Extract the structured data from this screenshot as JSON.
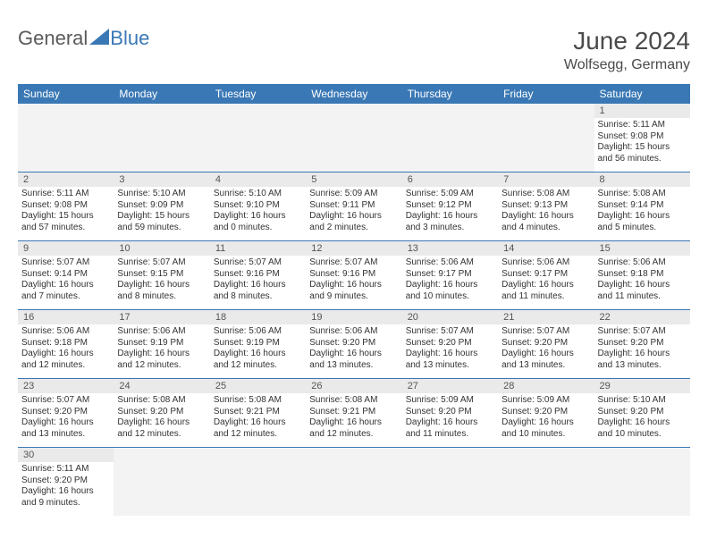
{
  "logo": {
    "part1": "General",
    "part2": "Blue"
  },
  "title": "June 2024",
  "location": "Wolfsegg, Germany",
  "colors": {
    "header_bg": "#3a78b5",
    "header_text": "#ffffff",
    "daynum_bg": "#eaeaea",
    "blank_bg": "#f3f3f3",
    "border": "#3a78b5",
    "text": "#333333",
    "title_text": "#4a4a4a"
  },
  "dow": [
    "Sunday",
    "Monday",
    "Tuesday",
    "Wednesday",
    "Thursday",
    "Friday",
    "Saturday"
  ],
  "days": {
    "1": {
      "sunrise": "Sunrise: 5:11 AM",
      "sunset": "Sunset: 9:08 PM",
      "day1": "Daylight: 15 hours",
      "day2": "and 56 minutes."
    },
    "2": {
      "sunrise": "Sunrise: 5:11 AM",
      "sunset": "Sunset: 9:08 PM",
      "day1": "Daylight: 15 hours",
      "day2": "and 57 minutes."
    },
    "3": {
      "sunrise": "Sunrise: 5:10 AM",
      "sunset": "Sunset: 9:09 PM",
      "day1": "Daylight: 15 hours",
      "day2": "and 59 minutes."
    },
    "4": {
      "sunrise": "Sunrise: 5:10 AM",
      "sunset": "Sunset: 9:10 PM",
      "day1": "Daylight: 16 hours",
      "day2": "and 0 minutes."
    },
    "5": {
      "sunrise": "Sunrise: 5:09 AM",
      "sunset": "Sunset: 9:11 PM",
      "day1": "Daylight: 16 hours",
      "day2": "and 2 minutes."
    },
    "6": {
      "sunrise": "Sunrise: 5:09 AM",
      "sunset": "Sunset: 9:12 PM",
      "day1": "Daylight: 16 hours",
      "day2": "and 3 minutes."
    },
    "7": {
      "sunrise": "Sunrise: 5:08 AM",
      "sunset": "Sunset: 9:13 PM",
      "day1": "Daylight: 16 hours",
      "day2": "and 4 minutes."
    },
    "8": {
      "sunrise": "Sunrise: 5:08 AM",
      "sunset": "Sunset: 9:14 PM",
      "day1": "Daylight: 16 hours",
      "day2": "and 5 minutes."
    },
    "9": {
      "sunrise": "Sunrise: 5:07 AM",
      "sunset": "Sunset: 9:14 PM",
      "day1": "Daylight: 16 hours",
      "day2": "and 7 minutes."
    },
    "10": {
      "sunrise": "Sunrise: 5:07 AM",
      "sunset": "Sunset: 9:15 PM",
      "day1": "Daylight: 16 hours",
      "day2": "and 8 minutes."
    },
    "11": {
      "sunrise": "Sunrise: 5:07 AM",
      "sunset": "Sunset: 9:16 PM",
      "day1": "Daylight: 16 hours",
      "day2": "and 8 minutes."
    },
    "12": {
      "sunrise": "Sunrise: 5:07 AM",
      "sunset": "Sunset: 9:16 PM",
      "day1": "Daylight: 16 hours",
      "day2": "and 9 minutes."
    },
    "13": {
      "sunrise": "Sunrise: 5:06 AM",
      "sunset": "Sunset: 9:17 PM",
      "day1": "Daylight: 16 hours",
      "day2": "and 10 minutes."
    },
    "14": {
      "sunrise": "Sunrise: 5:06 AM",
      "sunset": "Sunset: 9:17 PM",
      "day1": "Daylight: 16 hours",
      "day2": "and 11 minutes."
    },
    "15": {
      "sunrise": "Sunrise: 5:06 AM",
      "sunset": "Sunset: 9:18 PM",
      "day1": "Daylight: 16 hours",
      "day2": "and 11 minutes."
    },
    "16": {
      "sunrise": "Sunrise: 5:06 AM",
      "sunset": "Sunset: 9:18 PM",
      "day1": "Daylight: 16 hours",
      "day2": "and 12 minutes."
    },
    "17": {
      "sunrise": "Sunrise: 5:06 AM",
      "sunset": "Sunset: 9:19 PM",
      "day1": "Daylight: 16 hours",
      "day2": "and 12 minutes."
    },
    "18": {
      "sunrise": "Sunrise: 5:06 AM",
      "sunset": "Sunset: 9:19 PM",
      "day1": "Daylight: 16 hours",
      "day2": "and 12 minutes."
    },
    "19": {
      "sunrise": "Sunrise: 5:06 AM",
      "sunset": "Sunset: 9:20 PM",
      "day1": "Daylight: 16 hours",
      "day2": "and 13 minutes."
    },
    "20": {
      "sunrise": "Sunrise: 5:07 AM",
      "sunset": "Sunset: 9:20 PM",
      "day1": "Daylight: 16 hours",
      "day2": "and 13 minutes."
    },
    "21": {
      "sunrise": "Sunrise: 5:07 AM",
      "sunset": "Sunset: 9:20 PM",
      "day1": "Daylight: 16 hours",
      "day2": "and 13 minutes."
    },
    "22": {
      "sunrise": "Sunrise: 5:07 AM",
      "sunset": "Sunset: 9:20 PM",
      "day1": "Daylight: 16 hours",
      "day2": "and 13 minutes."
    },
    "23": {
      "sunrise": "Sunrise: 5:07 AM",
      "sunset": "Sunset: 9:20 PM",
      "day1": "Daylight: 16 hours",
      "day2": "and 13 minutes."
    },
    "24": {
      "sunrise": "Sunrise: 5:08 AM",
      "sunset": "Sunset: 9:20 PM",
      "day1": "Daylight: 16 hours",
      "day2": "and 12 minutes."
    },
    "25": {
      "sunrise": "Sunrise: 5:08 AM",
      "sunset": "Sunset: 9:21 PM",
      "day1": "Daylight: 16 hours",
      "day2": "and 12 minutes."
    },
    "26": {
      "sunrise": "Sunrise: 5:08 AM",
      "sunset": "Sunset: 9:21 PM",
      "day1": "Daylight: 16 hours",
      "day2": "and 12 minutes."
    },
    "27": {
      "sunrise": "Sunrise: 5:09 AM",
      "sunset": "Sunset: 9:20 PM",
      "day1": "Daylight: 16 hours",
      "day2": "and 11 minutes."
    },
    "28": {
      "sunrise": "Sunrise: 5:09 AM",
      "sunset": "Sunset: 9:20 PM",
      "day1": "Daylight: 16 hours",
      "day2": "and 10 minutes."
    },
    "29": {
      "sunrise": "Sunrise: 5:10 AM",
      "sunset": "Sunset: 9:20 PM",
      "day1": "Daylight: 16 hours",
      "day2": "and 10 minutes."
    },
    "30": {
      "sunrise": "Sunrise: 5:11 AM",
      "sunset": "Sunset: 9:20 PM",
      "day1": "Daylight: 16 hours",
      "day2": "and 9 minutes."
    }
  },
  "weeks": [
    [
      null,
      null,
      null,
      null,
      null,
      null,
      1
    ],
    [
      2,
      3,
      4,
      5,
      6,
      7,
      8
    ],
    [
      9,
      10,
      11,
      12,
      13,
      14,
      15
    ],
    [
      16,
      17,
      18,
      19,
      20,
      21,
      22
    ],
    [
      23,
      24,
      25,
      26,
      27,
      28,
      29
    ],
    [
      30,
      null,
      null,
      null,
      null,
      null,
      null
    ]
  ]
}
